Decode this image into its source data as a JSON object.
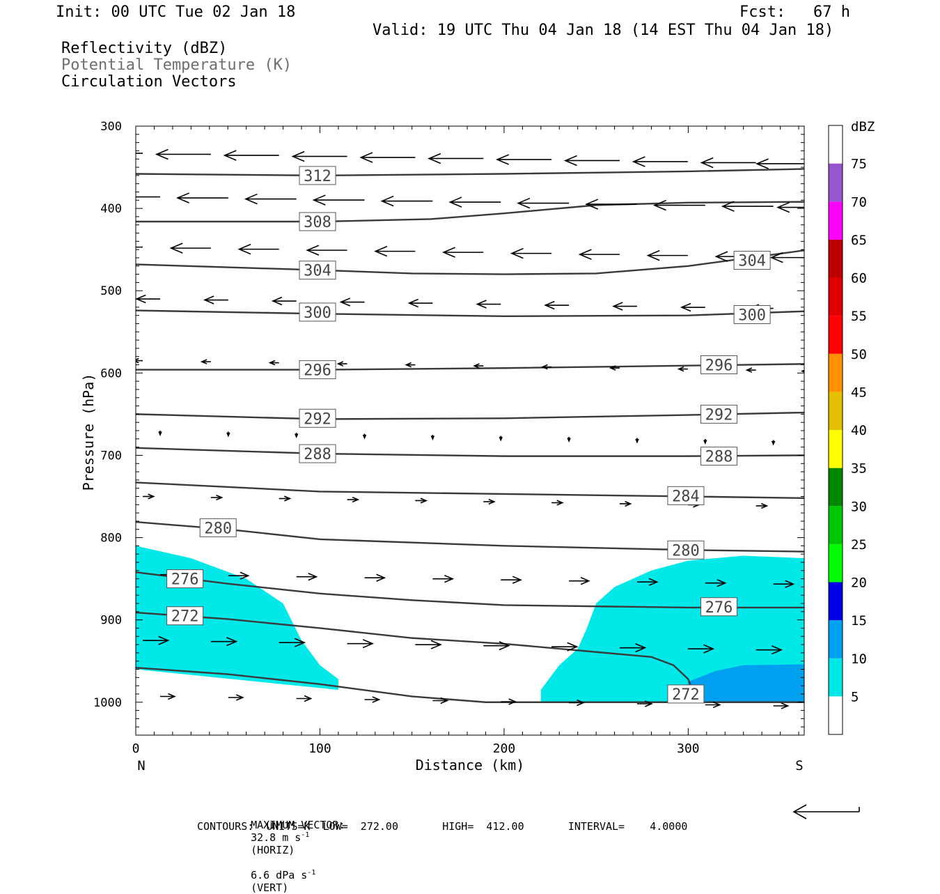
{
  "header": {
    "init": "Init: 00 UTC Tue 02 Jan 18",
    "fcst": "Fcst:   67 h",
    "valid": "Valid: 19 UTC Thu 04 Jan 18 (14 EST Thu 04 Jan 18)"
  },
  "fields": {
    "reflectivity": "Reflectivity (dBZ)",
    "theta": "Potential Temperature (K)",
    "vectors": "Circulation Vectors"
  },
  "footer": {
    "max_vector_label": "MAXIMUM VECTOR:",
    "max_vector_horiz": "32.8 m s",
    "horiz_tag": "(HORIZ)",
    "max_vector_vert": "6.6 dPa s",
    "vert_tag": "(VERT)",
    "exponent": "-1",
    "contours_line": "CONTOURS:  UNITS=K  LOW=  272.00       HIGH=  412.00       INTERVAL=    4.0000"
  },
  "colors": {
    "contour": "#3a3a3a",
    "reflect_5": "#00e8e8",
    "reflect_10": "#00a0f0"
  },
  "chart_data": {
    "type": "cross-section",
    "xlabel": "Distance (km)",
    "ylabel": "Pressure (hPa)",
    "xlim": [
      0,
      363
    ],
    "ylim": [
      1040,
      300
    ],
    "x_ticks": [
      "0",
      "100",
      "200",
      "300"
    ],
    "y_ticks": [
      "300",
      "400",
      "500",
      "600",
      "700",
      "800",
      "900",
      "1000"
    ],
    "x_end_labels": {
      "left": "N",
      "right": "S"
    },
    "colorbar": {
      "unit": "dBZ",
      "levels": [
        "5",
        "10",
        "15",
        "20",
        "25",
        "30",
        "35",
        "40",
        "45",
        "50",
        "55",
        "60",
        "65",
        "70",
        "75"
      ],
      "colors": [
        "#ffffff",
        "#00e8e8",
        "#00a0f0",
        "#0000e6",
        "#00ff00",
        "#00c800",
        "#008800",
        "#ffff00",
        "#e6c000",
        "#ff9000",
        "#ff0000",
        "#e00000",
        "#bc0000",
        "#ff00ff",
        "#9955cc",
        "#ffffff"
      ]
    },
    "theta_contours": [
      {
        "label": "312",
        "points": [
          [
            0,
            358
          ],
          [
            100,
            360
          ],
          [
            200,
            358
          ],
          [
            300,
            355
          ],
          [
            363,
            352
          ]
        ],
        "labels_at": [
          [
            90,
            360
          ]
        ]
      },
      {
        "label": "308",
        "points": [
          [
            0,
            416
          ],
          [
            100,
            416
          ],
          [
            160,
            413
          ],
          [
            200,
            406
          ],
          [
            250,
            396
          ],
          [
            300,
            393
          ],
          [
            363,
            392
          ]
        ],
        "labels_at": [
          [
            90,
            416
          ]
        ]
      },
      {
        "label": "304",
        "points": [
          [
            0,
            468
          ],
          [
            100,
            475
          ],
          [
            150,
            479
          ],
          [
            200,
            480
          ],
          [
            250,
            479
          ],
          [
            300,
            470
          ],
          [
            340,
            458
          ],
          [
            363,
            451
          ]
        ],
        "labels_at": [
          [
            90,
            475
          ],
          [
            326,
            463
          ]
        ]
      },
      {
        "label": "300",
        "points": [
          [
            0,
            524
          ],
          [
            100,
            528
          ],
          [
            200,
            531
          ],
          [
            300,
            530
          ],
          [
            363,
            525
          ]
        ],
        "labels_at": [
          [
            90,
            526
          ],
          [
            326,
            529
          ]
        ]
      },
      {
        "label": "296",
        "points": [
          [
            0,
            596
          ],
          [
            100,
            596
          ],
          [
            200,
            594
          ],
          [
            300,
            591
          ],
          [
            363,
            589
          ]
        ],
        "labels_at": [
          [
            90,
            596
          ],
          [
            308,
            590
          ]
        ]
      },
      {
        "label": "292",
        "points": [
          [
            0,
            650
          ],
          [
            100,
            656
          ],
          [
            200,
            655
          ],
          [
            300,
            651
          ],
          [
            363,
            648
          ]
        ],
        "labels_at": [
          [
            90,
            655
          ],
          [
            308,
            650
          ]
        ]
      },
      {
        "label": "288",
        "points": [
          [
            0,
            691
          ],
          [
            100,
            698
          ],
          [
            200,
            701
          ],
          [
            300,
            701
          ],
          [
            363,
            700
          ]
        ],
        "labels_at": [
          [
            90,
            698
          ],
          [
            308,
            701
          ]
        ]
      },
      {
        "label": "284",
        "points": [
          [
            0,
            733
          ],
          [
            100,
            744
          ],
          [
            200,
            747
          ],
          [
            300,
            750
          ],
          [
            363,
            752
          ]
        ],
        "labels_at": [
          [
            290,
            749
          ]
        ]
      },
      {
        "label": "280",
        "points": [
          [
            0,
            781
          ],
          [
            50,
            790
          ],
          [
            100,
            802
          ],
          [
            200,
            810
          ],
          [
            300,
            815
          ],
          [
            363,
            817
          ]
        ],
        "labels_at": [
          [
            36,
            788
          ],
          [
            290,
            815
          ]
        ]
      },
      {
        "label": "276",
        "points": [
          [
            0,
            842
          ],
          [
            50,
            856
          ],
          [
            100,
            868
          ],
          [
            150,
            876
          ],
          [
            200,
            882
          ],
          [
            300,
            885
          ],
          [
            363,
            885
          ]
        ],
        "labels_at": [
          [
            18,
            850
          ],
          [
            308,
            884
          ]
        ]
      },
      {
        "label": "272",
        "points": [
          [
            0,
            891
          ],
          [
            50,
            899
          ],
          [
            100,
            910
          ],
          [
            150,
            922
          ],
          [
            200,
            929
          ],
          [
            280,
            945
          ],
          [
            292,
            955
          ],
          [
            300,
            972
          ],
          [
            305,
            1000
          ]
        ],
        "labels_at": [
          [
            18,
            895
          ],
          [
            290,
            990
          ]
        ]
      },
      {
        "label": "",
        "points": [
          [
            0,
            958
          ],
          [
            50,
            966
          ],
          [
            100,
            978
          ],
          [
            150,
            993
          ],
          [
            190,
            1000
          ],
          [
            363,
            1000
          ]
        ],
        "labels_at": []
      }
    ],
    "reflectivity_areas": [
      {
        "dbz": 5,
        "points": [
          [
            0,
            810
          ],
          [
            30,
            825
          ],
          [
            60,
            850
          ],
          [
            80,
            880
          ],
          [
            90,
            925
          ],
          [
            100,
            955
          ],
          [
            110,
            972
          ],
          [
            110,
            985
          ],
          [
            0,
            960
          ]
        ]
      },
      {
        "dbz": 5,
        "points": [
          [
            220,
            1000
          ],
          [
            220,
            985
          ],
          [
            230,
            955
          ],
          [
            240,
            935
          ],
          [
            245,
            910
          ],
          [
            250,
            880
          ],
          [
            260,
            860
          ],
          [
            280,
            840
          ],
          [
            300,
            828
          ],
          [
            330,
            822
          ],
          [
            363,
            825
          ],
          [
            363,
            1000
          ]
        ]
      },
      {
        "dbz": 10,
        "points": [
          [
            298,
            1000
          ],
          [
            300,
            975
          ],
          [
            315,
            962
          ],
          [
            330,
            955
          ],
          [
            363,
            954
          ],
          [
            363,
            1000
          ]
        ]
      }
    ],
    "vector_rows": [
      {
        "p": 333,
        "u": -30,
        "w": 0
      },
      {
        "p": 386,
        "u": -28,
        "w": 0
      },
      {
        "p": 447,
        "u": -22,
        "w": 0
      },
      {
        "p": 510,
        "u": -13,
        "w": 0
      },
      {
        "p": 585,
        "u": -5,
        "w": 0
      },
      {
        "p": 670,
        "u": 0,
        "w": 2
      },
      {
        "p": 750,
        "u": 6,
        "w": 0
      },
      {
        "p": 845,
        "u": 11,
        "w": 0
      },
      {
        "p": 925,
        "u": 14,
        "w": 0
      },
      {
        "p": 993,
        "u": 8,
        "w": 0
      }
    ]
  }
}
